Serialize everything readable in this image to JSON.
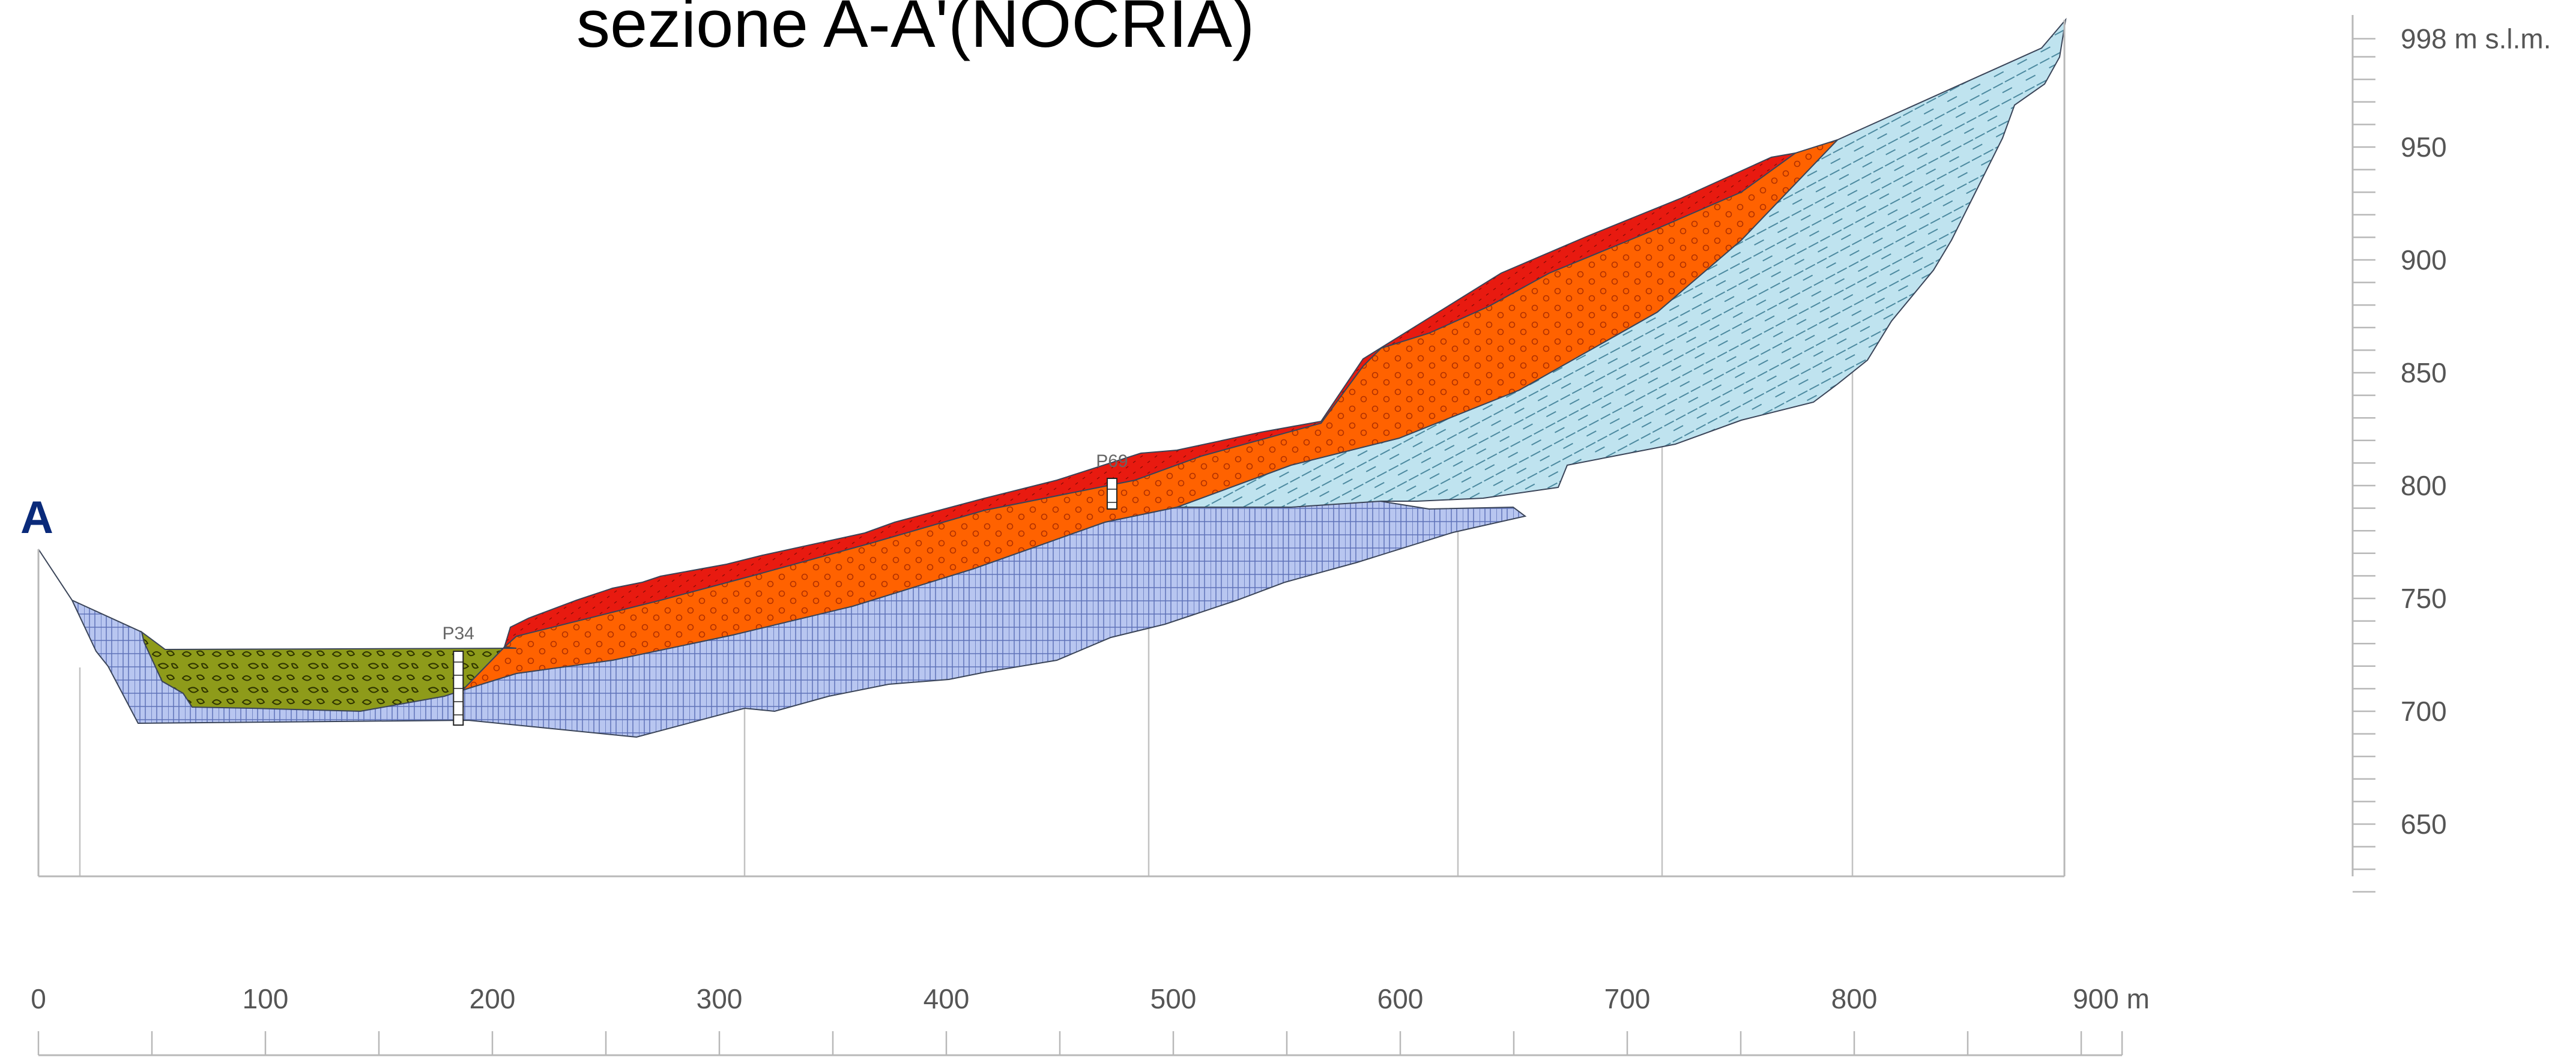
{
  "title": "sezione A-A'(NOCRIA)",
  "section_mark": "A",
  "x_axis": {
    "unit": "m",
    "ticks": [
      0,
      100,
      200,
      300,
      400,
      500,
      600,
      700,
      800,
      900
    ],
    "tick_labels": [
      "0",
      "100",
      "200",
      "300",
      "400",
      "500",
      "600",
      "700",
      "800",
      "900 m"
    ]
  },
  "y_axis": {
    "ticks": [
      650,
      700,
      750,
      800,
      850,
      900,
      950,
      998
    ],
    "tick_labels": [
      "650",
      "700",
      "750",
      "800",
      "850",
      "900",
      "950",
      "998 m s.l.m."
    ]
  },
  "wells": [
    {
      "name": "P34",
      "distance_m": 185
    },
    {
      "name": "P69",
      "distance_m": 473
    }
  ],
  "colors": {
    "bedrock_blue": "#b8c6f0",
    "bedrock_light_blue": "#bfe3ef",
    "orange_layer": "#ff6200",
    "red_layer": "#e81a10",
    "olive_deposit": "#8e9b1a",
    "axis": "#b8b8b8"
  }
}
